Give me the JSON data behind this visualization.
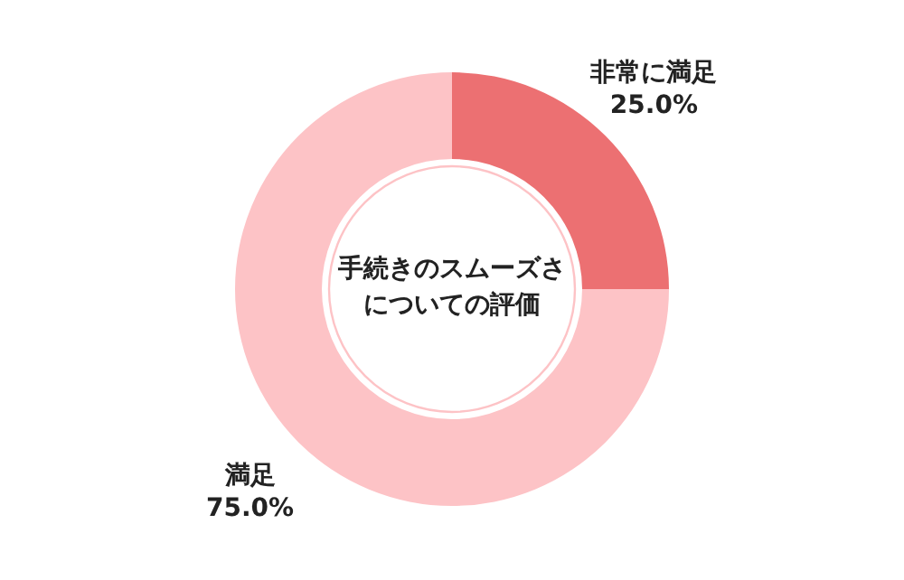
{
  "chart_data": {
    "type": "donut",
    "title": "手続きのスムーズさについての評価",
    "categories": [
      "非常に満足",
      "満足"
    ],
    "values": [
      25,
      75
    ],
    "colors": [
      "#ec7072",
      "#fdc3c6"
    ],
    "value_labels": [
      "25.0%",
      "75.0%"
    ]
  }
}
